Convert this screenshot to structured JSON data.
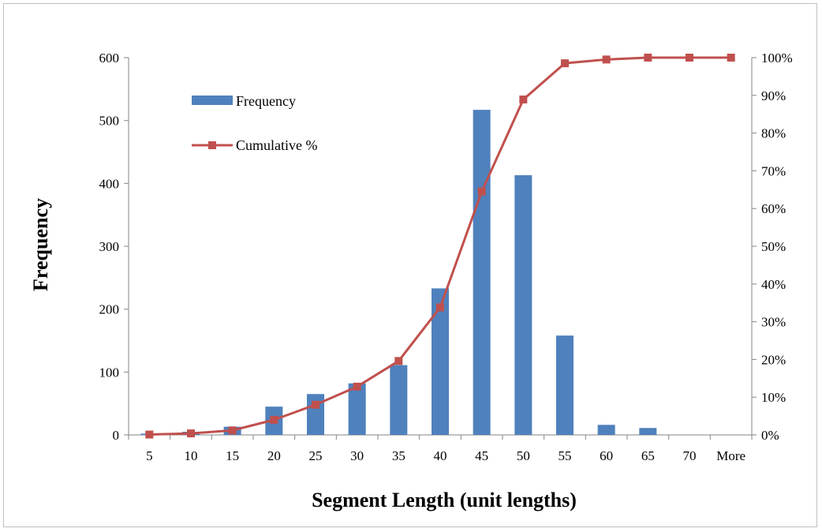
{
  "chart_data": {
    "type": "bar",
    "categories": [
      "5",
      "10",
      "15",
      "20",
      "25",
      "30",
      "35",
      "40",
      "45",
      "50",
      "55",
      "60",
      "65",
      "70",
      "More"
    ],
    "series": [
      {
        "name": "Frequency",
        "type": "bar",
        "axis": "left",
        "color": "#4f81bd",
        "values": [
          2,
          5,
          13,
          45,
          65,
          82,
          111,
          233,
          517,
          413,
          158,
          16,
          11,
          0,
          0
        ]
      },
      {
        "name": "Cumulative %",
        "type": "line",
        "axis": "right",
        "color": "#c0504d",
        "marker": "square",
        "values": [
          0.1,
          0.4,
          1.2,
          4.0,
          8.0,
          12.8,
          19.6,
          33.8,
          64.5,
          88.9,
          98.5,
          99.5,
          100,
          100,
          100
        ]
      }
    ],
    "title": "",
    "xlabel": "Segment Length (unit lengths)",
    "ylabel": "Frequency",
    "ylim": [
      0,
      600
    ],
    "yticks": [
      "0",
      "100",
      "200",
      "300",
      "400",
      "500",
      "600"
    ],
    "y2lim": [
      0,
      100
    ],
    "y2ticks": [
      "0%",
      "10%",
      "20%",
      "30%",
      "40%",
      "50%",
      "60%",
      "70%",
      "80%",
      "90%",
      "100%"
    ],
    "grid": false,
    "legend": "top-left"
  }
}
